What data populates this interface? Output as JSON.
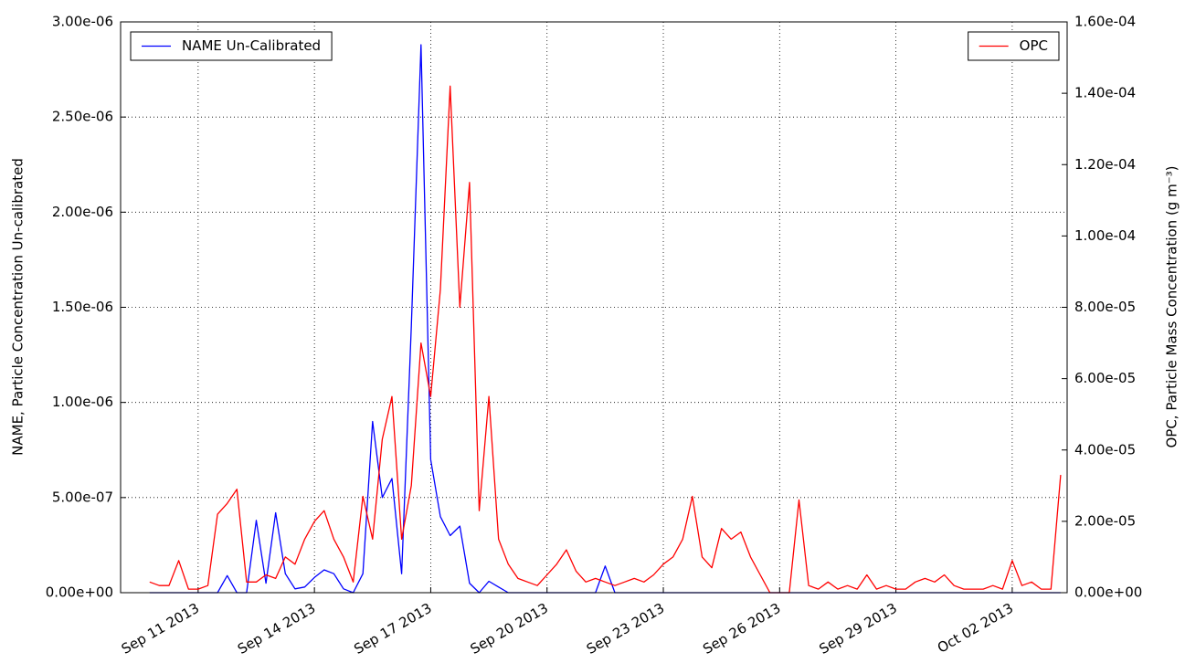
{
  "chart_data": {
    "type": "line",
    "ylabel": "NAME, Particle Concentration Un-calibrated",
    "y2label": "OPC, Particle Mass Concentration (g m⁻³)",
    "x": [
      "2013-09-09T18:00",
      "2013-09-10T00:00",
      "2013-09-10T06:00",
      "2013-09-10T12:00",
      "2013-09-10T18:00",
      "2013-09-11T00:00",
      "2013-09-11T06:00",
      "2013-09-11T12:00",
      "2013-09-11T18:00",
      "2013-09-12T00:00",
      "2013-09-12T06:00",
      "2013-09-12T12:00",
      "2013-09-12T18:00",
      "2013-09-13T00:00",
      "2013-09-13T06:00",
      "2013-09-13T12:00",
      "2013-09-13T18:00",
      "2013-09-14T00:00",
      "2013-09-14T06:00",
      "2013-09-14T12:00",
      "2013-09-14T18:00",
      "2013-09-15T00:00",
      "2013-09-15T06:00",
      "2013-09-15T12:00",
      "2013-09-15T18:00",
      "2013-09-16T00:00",
      "2013-09-16T06:00",
      "2013-09-16T12:00",
      "2013-09-16T18:00",
      "2013-09-17T00:00",
      "2013-09-17T06:00",
      "2013-09-17T12:00",
      "2013-09-17T18:00",
      "2013-09-18T00:00",
      "2013-09-18T06:00",
      "2013-09-18T12:00",
      "2013-09-18T18:00",
      "2013-09-19T00:00",
      "2013-09-19T06:00",
      "2013-09-19T12:00",
      "2013-09-19T18:00",
      "2013-09-20T00:00",
      "2013-09-20T06:00",
      "2013-09-20T12:00",
      "2013-09-20T18:00",
      "2013-09-21T00:00",
      "2013-09-21T06:00",
      "2013-09-21T12:00",
      "2013-09-21T18:00",
      "2013-09-22T00:00",
      "2013-09-22T06:00",
      "2013-09-22T12:00",
      "2013-09-22T18:00",
      "2013-09-23T00:00",
      "2013-09-23T06:00",
      "2013-09-23T12:00",
      "2013-09-23T18:00",
      "2013-09-24T00:00",
      "2013-09-24T06:00",
      "2013-09-24T12:00",
      "2013-09-24T18:00",
      "2013-09-25T00:00",
      "2013-09-25T06:00",
      "2013-09-25T12:00",
      "2013-09-25T18:00",
      "2013-09-26T00:00",
      "2013-09-26T06:00",
      "2013-09-26T12:00",
      "2013-09-26T18:00",
      "2013-09-27T00:00",
      "2013-09-27T06:00",
      "2013-09-27T12:00",
      "2013-09-27T18:00",
      "2013-09-28T00:00",
      "2013-09-28T06:00",
      "2013-09-28T12:00",
      "2013-09-28T18:00",
      "2013-09-29T00:00",
      "2013-09-29T06:00",
      "2013-09-29T12:00",
      "2013-09-29T18:00",
      "2013-09-30T00:00",
      "2013-09-30T06:00",
      "2013-09-30T12:00",
      "2013-09-30T18:00",
      "2013-10-01T00:00",
      "2013-10-01T06:00",
      "2013-10-01T12:00",
      "2013-10-01T18:00",
      "2013-10-02T00:00",
      "2013-10-02T06:00",
      "2013-10-02T12:00",
      "2013-10-02T18:00",
      "2013-10-03T00:00",
      "2013-10-03T06:00"
    ],
    "series": [
      {
        "name": "NAME Un-Calibrated",
        "color": "#0000ff",
        "axis": "y",
        "legend": "upper left",
        "values": [
          0,
          0,
          0,
          0,
          0,
          0,
          0,
          0,
          9e-08,
          0,
          0,
          3.8e-07,
          5e-08,
          4.2e-07,
          1e-07,
          2e-08,
          3e-08,
          8e-08,
          1.2e-07,
          1e-07,
          2e-08,
          0,
          1e-07,
          9e-07,
          5e-07,
          6e-07,
          1e-07,
          1.4e-06,
          2.88e-06,
          7e-07,
          4e-07,
          3e-07,
          3.5e-07,
          5e-08,
          0,
          6e-08,
          3e-08,
          0,
          0,
          0,
          0,
          0,
          0,
          0,
          0,
          0,
          0,
          1.4e-07,
          0,
          0,
          0,
          0,
          0,
          0,
          0,
          0,
          0,
          0,
          0,
          0,
          0,
          0,
          0,
          0,
          0,
          0,
          0,
          0,
          0,
          0,
          0,
          0,
          0,
          0,
          0,
          0,
          0,
          0,
          0,
          0,
          0,
          0,
          0,
          0,
          0,
          0,
          0,
          0,
          0,
          0,
          0,
          0,
          0,
          0,
          0
        ]
      },
      {
        "name": "OPC",
        "color": "#ff0000",
        "axis": "y2",
        "legend": "upper right",
        "values": [
          3e-06,
          2e-06,
          2e-06,
          9e-06,
          1e-06,
          1e-06,
          2e-06,
          2.2e-05,
          2.5e-05,
          2.9e-05,
          3e-06,
          3e-06,
          5e-06,
          4e-06,
          1e-05,
          8e-06,
          1.5e-05,
          2e-05,
          2.3e-05,
          1.5e-05,
          1e-05,
          3e-06,
          2.7e-05,
          1.5e-05,
          4.3e-05,
          5.5e-05,
          1.5e-05,
          3e-05,
          7e-05,
          5.5e-05,
          8.5e-05,
          0.000142,
          8e-05,
          0.000115,
          2.3e-05,
          5.5e-05,
          1.5e-05,
          8e-06,
          4e-06,
          3e-06,
          2e-06,
          5e-06,
          8e-06,
          1.2e-05,
          6e-06,
          3e-06,
          4e-06,
          3e-06,
          2e-06,
          3e-06,
          4e-06,
          3e-06,
          5e-06,
          8e-06,
          1e-05,
          1.5e-05,
          2.7e-05,
          1e-05,
          7e-06,
          1.8e-05,
          1.5e-05,
          1.7e-05,
          1e-05,
          5e-06,
          0,
          0,
          0,
          2.6e-05,
          2e-06,
          1e-06,
          3e-06,
          1e-06,
          2e-06,
          1e-06,
          5e-06,
          1e-06,
          2e-06,
          1e-06,
          1e-06,
          3e-06,
          4e-06,
          3e-06,
          5e-06,
          2e-06,
          1e-06,
          1e-06,
          1e-06,
          2e-06,
          1e-06,
          9e-06,
          2e-06,
          3e-06,
          1e-06,
          1e-06,
          3.3e-05
        ]
      }
    ],
    "xlim": [
      "2013-09-09T00:00",
      "2013-10-03T10:00"
    ],
    "xticks": [
      {
        "value": "2013-09-11T00:00",
        "label": "Sep 11 2013"
      },
      {
        "value": "2013-09-14T00:00",
        "label": "Sep 14 2013"
      },
      {
        "value": "2013-09-17T00:00",
        "label": "Sep 17 2013"
      },
      {
        "value": "2013-09-20T00:00",
        "label": "Sep 20 2013"
      },
      {
        "value": "2013-09-23T00:00",
        "label": "Sep 23 2013"
      },
      {
        "value": "2013-09-26T00:00",
        "label": "Sep 26 2013"
      },
      {
        "value": "2013-09-29T00:00",
        "label": "Sep 29 2013"
      },
      {
        "value": "2013-10-02T00:00",
        "label": "Oct 02 2013"
      }
    ],
    "ylim": [
      0,
      3e-06
    ],
    "yticks": [
      {
        "value": 0,
        "label": "0.00e+00"
      },
      {
        "value": 5e-07,
        "label": "5.00e-07"
      },
      {
        "value": 1e-06,
        "label": "1.00e-06"
      },
      {
        "value": 1.5e-06,
        "label": "1.50e-06"
      },
      {
        "value": 2e-06,
        "label": "2.00e-06"
      },
      {
        "value": 2.5e-06,
        "label": "2.50e-06"
      },
      {
        "value": 3e-06,
        "label": "3.00e-06"
      }
    ],
    "y2lim": [
      0,
      0.00016
    ],
    "y2ticks": [
      {
        "value": 0,
        "label": "0.00e+00"
      },
      {
        "value": 2e-05,
        "label": "2.00e-05"
      },
      {
        "value": 4e-05,
        "label": "4.00e-05"
      },
      {
        "value": 6e-05,
        "label": "6.00e-05"
      },
      {
        "value": 8e-05,
        "label": "8.00e-05"
      },
      {
        "value": 0.0001,
        "label": "1.00e-04"
      },
      {
        "value": 0.00012,
        "label": "1.20e-04"
      },
      {
        "value": 0.00014,
        "label": "1.40e-04"
      },
      {
        "value": 0.00016,
        "label": "1.60e-04"
      }
    ],
    "grid": true
  }
}
